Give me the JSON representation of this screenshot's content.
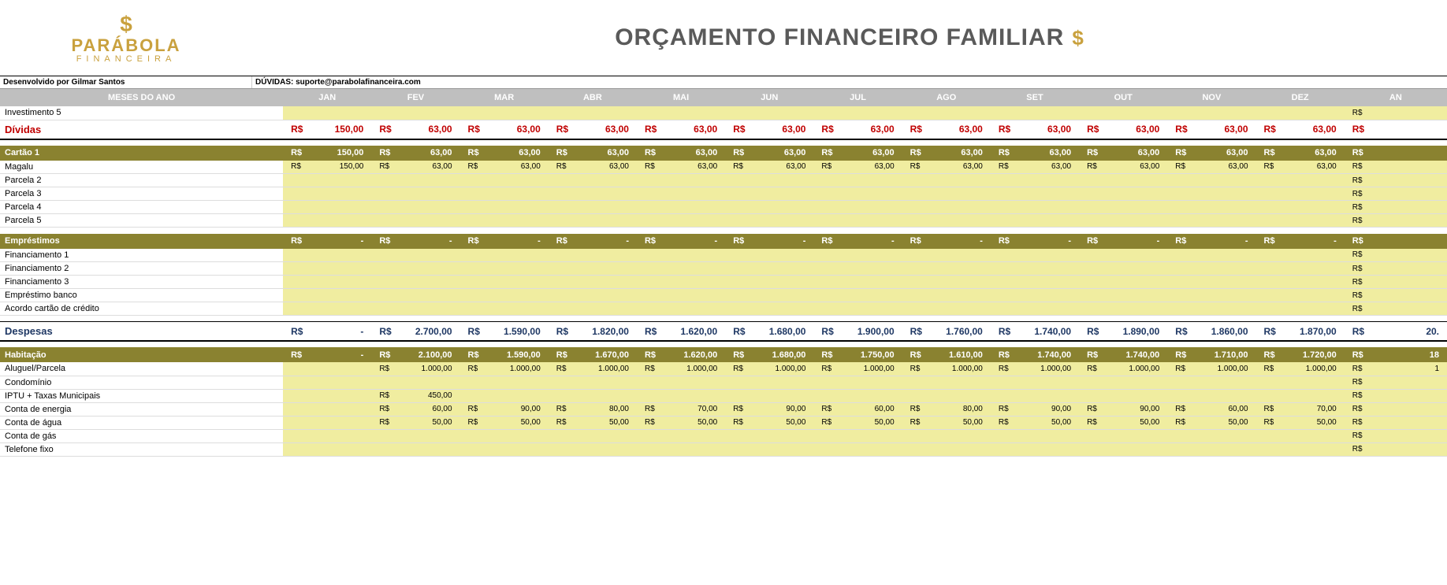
{
  "brand": {
    "name": "PARÁBOLA",
    "subtitle": "FINANCEIRA"
  },
  "title": "ORÇAMENTO FINANCEIRO FAMILIAR",
  "credits": "Desenvolvido por Gilmar Santos",
  "support": "DÚVIDAS: suporte@parabolafinanceira.com",
  "months_header": "MESES DO ANO",
  "months": [
    "JAN",
    "FEV",
    "MAR",
    "ABR",
    "MAI",
    "JUN",
    "JUL",
    "AGO",
    "SET",
    "OUT",
    "NOV",
    "DEZ"
  ],
  "anual_label": "AN",
  "currency": "R$",
  "rows": [
    {
      "type": "item",
      "label": "Investimento 5",
      "values": [
        "",
        "",
        "",
        "",
        "",
        "",
        "",
        "",
        "",
        "",
        "",
        "",
        ""
      ]
    },
    {
      "type": "section",
      "klass": "section-dividas",
      "label": "Dívidas",
      "values": [
        "150,00",
        "63,00",
        "63,00",
        "63,00",
        "63,00",
        "63,00",
        "63,00",
        "63,00",
        "63,00",
        "63,00",
        "63,00",
        "63,00",
        ""
      ]
    },
    {
      "type": "spacer"
    },
    {
      "type": "sub",
      "label": "Cartão 1",
      "values": [
        "150,00",
        "63,00",
        "63,00",
        "63,00",
        "63,00",
        "63,00",
        "63,00",
        "63,00",
        "63,00",
        "63,00",
        "63,00",
        "63,00",
        ""
      ]
    },
    {
      "type": "item",
      "label": "Magalu",
      "values": [
        "150,00",
        "63,00",
        "63,00",
        "63,00",
        "63,00",
        "63,00",
        "63,00",
        "63,00",
        "63,00",
        "63,00",
        "63,00",
        "63,00",
        ""
      ]
    },
    {
      "type": "item",
      "label": "Parcela 2",
      "values": [
        "",
        "",
        "",
        "",
        "",
        "",
        "",
        "",
        "",
        "",
        "",
        "",
        ""
      ]
    },
    {
      "type": "item",
      "label": "Parcela 3",
      "values": [
        "",
        "",
        "",
        "",
        "",
        "",
        "",
        "",
        "",
        "",
        "",
        "",
        ""
      ]
    },
    {
      "type": "item",
      "label": "Parcela 4",
      "values": [
        "",
        "",
        "",
        "",
        "",
        "",
        "",
        "",
        "",
        "",
        "",
        "",
        ""
      ]
    },
    {
      "type": "item",
      "label": "Parcela 5",
      "values": [
        "",
        "",
        "",
        "",
        "",
        "",
        "",
        "",
        "",
        "",
        "",
        "",
        ""
      ]
    },
    {
      "type": "spacer"
    },
    {
      "type": "sub",
      "label": "Empréstimos",
      "values": [
        "-",
        "-",
        "-",
        "-",
        "-",
        "-",
        "-",
        "-",
        "-",
        "-",
        "-",
        "-",
        ""
      ]
    },
    {
      "type": "item",
      "label": "Financiamento 1",
      "values": [
        "",
        "",
        "",
        "",
        "",
        "",
        "",
        "",
        "",
        "",
        "",
        "",
        ""
      ]
    },
    {
      "type": "item",
      "label": "Financiamento 2",
      "values": [
        "",
        "",
        "",
        "",
        "",
        "",
        "",
        "",
        "",
        "",
        "",
        "",
        ""
      ]
    },
    {
      "type": "item",
      "label": "Financiamento 3",
      "values": [
        "",
        "",
        "",
        "",
        "",
        "",
        "",
        "",
        "",
        "",
        "",
        "",
        ""
      ]
    },
    {
      "type": "item",
      "label": "Empréstimo banco",
      "values": [
        "",
        "",
        "",
        "",
        "",
        "",
        "",
        "",
        "",
        "",
        "",
        "",
        ""
      ]
    },
    {
      "type": "item",
      "label": "Acordo cartão de crédito",
      "values": [
        "",
        "",
        "",
        "",
        "",
        "",
        "",
        "",
        "",
        "",
        "",
        "",
        ""
      ]
    },
    {
      "type": "spacer"
    },
    {
      "type": "section",
      "klass": "section-despesas",
      "label": "Despesas",
      "values": [
        "-",
        "2.700,00",
        "1.590,00",
        "1.820,00",
        "1.620,00",
        "1.680,00",
        "1.900,00",
        "1.760,00",
        "1.740,00",
        "1.890,00",
        "1.860,00",
        "1.870,00",
        "20."
      ]
    },
    {
      "type": "spacer"
    },
    {
      "type": "sub",
      "label": "Habitação",
      "values": [
        "-",
        "2.100,00",
        "1.590,00",
        "1.670,00",
        "1.620,00",
        "1.680,00",
        "1.750,00",
        "1.610,00",
        "1.740,00",
        "1.740,00",
        "1.710,00",
        "1.720,00",
        "18"
      ]
    },
    {
      "type": "item",
      "label": "Aluguel/Parcela",
      "values": [
        "",
        "1.000,00",
        "1.000,00",
        "1.000,00",
        "1.000,00",
        "1.000,00",
        "1.000,00",
        "1.000,00",
        "1.000,00",
        "1.000,00",
        "1.000,00",
        "1.000,00",
        "1"
      ]
    },
    {
      "type": "item",
      "label": "Condomínio",
      "values": [
        "",
        "",
        "",
        "",
        "",
        "",
        "",
        "",
        "",
        "",
        "",
        "",
        ""
      ]
    },
    {
      "type": "item",
      "label": "IPTU + Taxas Municipais",
      "values": [
        "",
        "450,00",
        "",
        "",
        "",
        "",
        "",
        "",
        "",
        "",
        "",
        "",
        ""
      ]
    },
    {
      "type": "item",
      "label": "Conta de energia",
      "values": [
        "",
        "60,00",
        "90,00",
        "80,00",
        "70,00",
        "90,00",
        "60,00",
        "80,00",
        "90,00",
        "90,00",
        "60,00",
        "70,00",
        ""
      ]
    },
    {
      "type": "item",
      "label": "Conta de água",
      "values": [
        "",
        "50,00",
        "50,00",
        "50,00",
        "50,00",
        "50,00",
        "50,00",
        "50,00",
        "50,00",
        "50,00",
        "50,00",
        "50,00",
        ""
      ]
    },
    {
      "type": "item",
      "label": "Conta de gás",
      "values": [
        "",
        "",
        "",
        "",
        "",
        "",
        "",
        "",
        "",
        "",
        "",
        "",
        ""
      ]
    },
    {
      "type": "item",
      "label": "Telefone fixo",
      "values": [
        "",
        "",
        "",
        "",
        "",
        "",
        "",
        "",
        "",
        "",
        "",
        "",
        ""
      ]
    }
  ],
  "colors": {
    "header_bg": "#bfbfbf",
    "sub_bg": "#8a8230",
    "yellow": "#f0eda0",
    "dividas": "#c00000",
    "despesas": "#1f3864"
  }
}
